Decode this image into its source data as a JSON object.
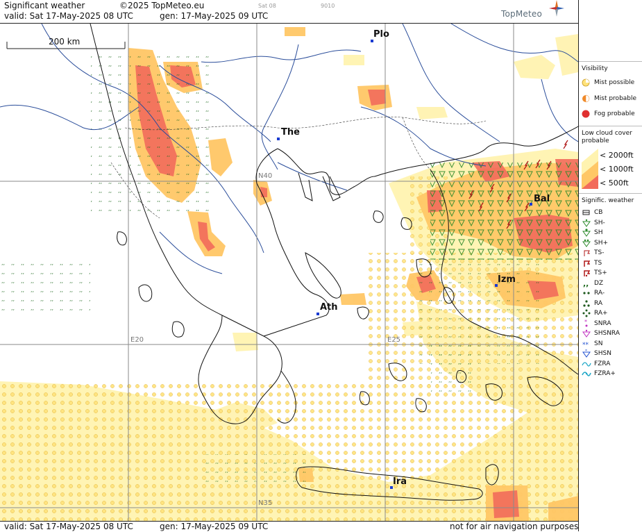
{
  "header": {
    "title": "Significant weather",
    "copyright": "©2025 TopMeteo.eu",
    "sat_label": "Sat 08",
    "code": "9010",
    "valid": "valid:  Sat  17-May-2025  08 UTC",
    "gen": "gen: 17-May-2025 09 UTC",
    "logo": "TopMeteo"
  },
  "footer": {
    "valid": "valid:  Sat  17-May-2025  08 UTC",
    "gen": "gen: 17-May-2025 09 UTC",
    "note": "not for air navigation purposes"
  },
  "map": {
    "scale": "200 km",
    "cities": [
      {
        "name": "Plo"
      },
      {
        "name": "The"
      },
      {
        "name": "Bal"
      },
      {
        "name": "Izm"
      },
      {
        "name": "Ath"
      },
      {
        "name": "Ira"
      }
    ],
    "grid_labels": [
      "N40",
      "E20",
      "E25",
      "N35"
    ]
  },
  "legend": {
    "visibility": {
      "title": "Visibility",
      "items": [
        "Mist possible",
        "Mist probable",
        "Fog probable"
      ]
    },
    "low_cloud": {
      "title": "Low cloud cover probable",
      "items": [
        "< 2000ft",
        "< 1000ft",
        "<  500ft"
      ],
      "colors": [
        "#fff3b0",
        "#ffc766",
        "#f26b5b"
      ]
    },
    "sigwx": {
      "title": "Signific. weather",
      "items": [
        "CB",
        "SH-",
        "SH",
        "SH+",
        "TS-",
        "TS",
        "TS+",
        "DZ",
        "RA-",
        "RA",
        "RA+",
        "SNRA",
        "SHSNRA",
        "SN",
        "SHSN",
        "FZRA",
        "FZRA+"
      ]
    }
  }
}
